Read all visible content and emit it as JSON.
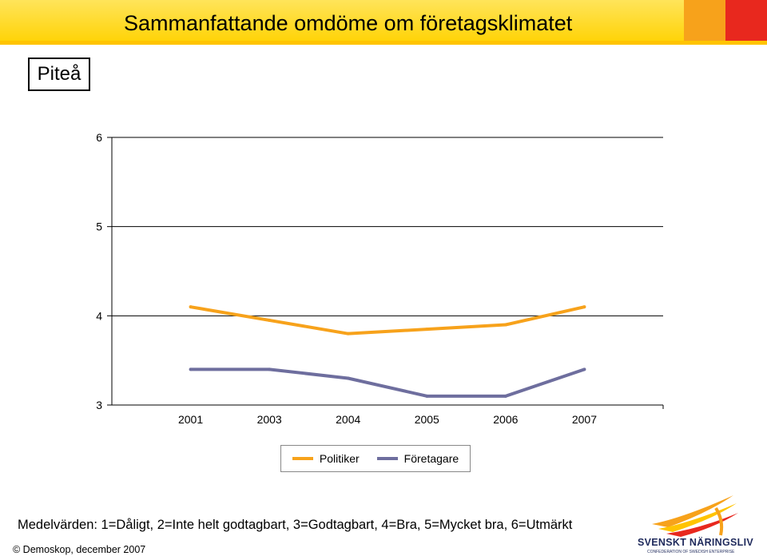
{
  "header": {
    "title": "Sammanfattande omdöme om företagsklimatet"
  },
  "region": {
    "label": "Piteå"
  },
  "chart_data": {
    "type": "line",
    "categories": [
      "2001",
      "2003",
      "2004",
      "2005",
      "2006",
      "2007"
    ],
    "ylim": [
      3,
      6
    ],
    "yticks": [
      3,
      4,
      5,
      6
    ],
    "grid": true,
    "legend_position": "bottom",
    "series": [
      {
        "name": "Politiker",
        "color": "#f7a21b",
        "values": [
          4.1,
          3.95,
          3.8,
          3.85,
          3.9,
          4.1
        ]
      },
      {
        "name": "Företagare",
        "color": "#6e6e9e",
        "values": [
          3.4,
          3.4,
          3.3,
          3.1,
          3.1,
          3.4
        ]
      }
    ]
  },
  "caption": "Medelvärden: 1=Dåligt, 2=Inte helt godtagbart, 3=Godtagbart, 4=Bra, 5=Mycket bra, 6=Utmärkt",
  "footer": {
    "copyright": "© Demoskop, december 2007"
  },
  "logo": {
    "text": "SVENSKT NÄRINGSLIV",
    "subtext": "CONFEDERATION OF SWEDISH ENTERPRISE"
  }
}
